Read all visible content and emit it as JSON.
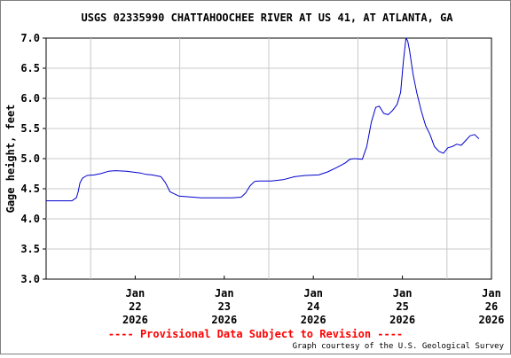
{
  "chart_data": {
    "type": "line",
    "title": "USGS 02335990 CHATTAHOOCHEE RIVER AT US 41, AT ATLANTA, GA",
    "ylabel": "Gage height, feet",
    "xlabel": "",
    "ylim": [
      3.0,
      7.0
    ],
    "y_ticks": [
      "3.0",
      "3.5",
      "4.0",
      "4.5",
      "5.0",
      "5.5",
      "6.0",
      "6.5",
      "7.0"
    ],
    "x_ticks": [
      {
        "day": 22,
        "lines": [
          "Jan",
          "22",
          "2026"
        ]
      },
      {
        "day": 23,
        "lines": [
          "Jan",
          "23",
          "2026"
        ]
      },
      {
        "day": 24,
        "lines": [
          "Jan",
          "24",
          "2026"
        ]
      },
      {
        "day": 25,
        "lines": [
          "Jan",
          "25",
          "2026"
        ]
      },
      {
        "day": 26,
        "lines": [
          "Jan",
          "26",
          "2026"
        ]
      }
    ],
    "xlim": [
      "2026-01-21 12:00",
      "2026-01-26 12:00"
    ],
    "grid": true,
    "line_color": "#0000cc",
    "series": [
      {
        "x": [
          21.5,
          21.62,
          21.79,
          21.84,
          21.86,
          21.88,
          21.91,
          21.96,
          22.04,
          22.11,
          22.2,
          22.28,
          22.4,
          22.56,
          22.62,
          22.69,
          22.79,
          22.84,
          22.89,
          22.99,
          23.24,
          23.39,
          23.59,
          23.69,
          23.74,
          23.79,
          23.84,
          23.89,
          24.03,
          24.16,
          24.29,
          24.41,
          24.56,
          24.66,
          24.76,
          24.86,
          24.91,
          24.96,
          25.05,
          25.1,
          25.15,
          25.2,
          25.24,
          25.27,
          25.29,
          25.34,
          25.39,
          25.44,
          25.48,
          25.51,
          25.54,
          25.56,
          25.58,
          25.6,
          25.62,
          25.66,
          25.71,
          25.76,
          25.81,
          25.86,
          25.91,
          25.96,
          26.01,
          26.06,
          26.11,
          26.16,
          26.21,
          26.26,
          26.31,
          26.36
        ],
        "values": [
          4.3,
          4.3,
          4.3,
          4.35,
          4.45,
          4.6,
          4.68,
          4.72,
          4.73,
          4.75,
          4.79,
          4.8,
          4.79,
          4.76,
          4.74,
          4.73,
          4.7,
          4.6,
          4.45,
          4.38,
          4.35,
          4.35,
          4.35,
          4.36,
          4.43,
          4.55,
          4.62,
          4.63,
          4.63,
          4.65,
          4.7,
          4.72,
          4.73,
          4.78,
          4.85,
          4.93,
          4.99,
          5.0,
          4.99,
          5.2,
          5.6,
          5.85,
          5.87,
          5.8,
          5.75,
          5.73,
          5.8,
          5.9,
          6.1,
          6.6,
          7.0,
          6.95,
          6.8,
          6.6,
          6.4,
          6.1,
          5.8,
          5.55,
          5.4,
          5.2,
          5.12,
          5.09,
          5.18,
          5.2,
          5.24,
          5.22,
          5.3,
          5.38,
          5.4,
          5.33
        ]
      }
    ]
  },
  "footer": {
    "notice": "---- Provisional Data Subject to Revision ----",
    "credit": "Graph courtesy of the U.S. Geological Survey"
  }
}
